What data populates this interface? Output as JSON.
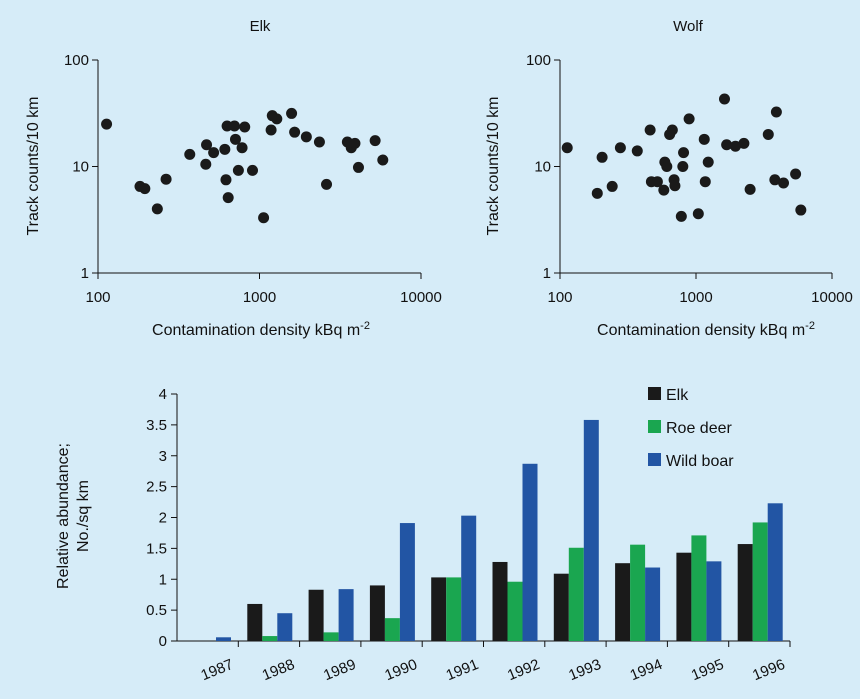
{
  "background_color": "#d6ecf8",
  "chart_data": [
    {
      "type": "scatter",
      "title": "Elk",
      "xlabel": "Contamination density kBq m",
      "xlabel_superscript": "-2",
      "ylabel": "Track counts/10 km",
      "xscale": "log",
      "yscale": "log",
      "xlim": [
        100,
        10000
      ],
      "ylim": [
        1,
        100
      ],
      "xticks": [
        "100",
        "1000",
        "10000"
      ],
      "yticks": [
        "1",
        "10",
        "100"
      ],
      "marker_color": "#1a1a1a",
      "points": [
        [
          113,
          25
        ],
        [
          182,
          6.5
        ],
        [
          195,
          6.2
        ],
        [
          233,
          4.0
        ],
        [
          264,
          7.6
        ],
        [
          370,
          13
        ],
        [
          465,
          10.5
        ],
        [
          470,
          16
        ],
        [
          520,
          13.5
        ],
        [
          610,
          14.5
        ],
        [
          620,
          7.5
        ],
        [
          630,
          24
        ],
        [
          640,
          5.1
        ],
        [
          700,
          24
        ],
        [
          710,
          18
        ],
        [
          740,
          9.2
        ],
        [
          780,
          15
        ],
        [
          810,
          23.5
        ],
        [
          905,
          9.2
        ],
        [
          1060,
          3.3
        ],
        [
          1180,
          22
        ],
        [
          1200,
          30
        ],
        [
          1280,
          28
        ],
        [
          1580,
          31.5
        ],
        [
          1650,
          21
        ],
        [
          1950,
          19
        ],
        [
          2350,
          17
        ],
        [
          2600,
          6.8
        ],
        [
          3500,
          17
        ],
        [
          3700,
          15
        ],
        [
          3900,
          16.5
        ],
        [
          4100,
          9.8
        ],
        [
          5200,
          17.5
        ],
        [
          5800,
          11.5
        ]
      ]
    },
    {
      "type": "scatter",
      "title": "Wolf",
      "xlabel": "Contamination density kBq m",
      "xlabel_superscript": "-2",
      "ylabel": "Track counts/10 km",
      "xscale": "log",
      "yscale": "log",
      "xlim": [
        100,
        10000
      ],
      "ylim": [
        1,
        100
      ],
      "xticks": [
        "100",
        "1000",
        "10000"
      ],
      "yticks": [
        "1",
        "10",
        "100"
      ],
      "marker_color": "#1a1a1a",
      "points": [
        [
          113,
          15
        ],
        [
          188,
          5.6
        ],
        [
          204,
          12.2
        ],
        [
          242,
          6.5
        ],
        [
          278,
          15
        ],
        [
          370,
          14
        ],
        [
          460,
          22
        ],
        [
          470,
          7.2
        ],
        [
          520,
          7.2
        ],
        [
          580,
          6.0
        ],
        [
          590,
          11
        ],
        [
          610,
          10
        ],
        [
          640,
          20
        ],
        [
          670,
          22
        ],
        [
          690,
          7.5
        ],
        [
          700,
          6.6
        ],
        [
          780,
          3.4
        ],
        [
          800,
          10
        ],
        [
          810,
          13.5
        ],
        [
          890,
          28
        ],
        [
          1040,
          3.6
        ],
        [
          1150,
          18
        ],
        [
          1170,
          7.2
        ],
        [
          1230,
          11
        ],
        [
          1620,
          43
        ],
        [
          1680,
          16
        ],
        [
          1950,
          15.5
        ],
        [
          2250,
          16.5
        ],
        [
          2500,
          6.1
        ],
        [
          3400,
          20
        ],
        [
          3800,
          7.5
        ],
        [
          3900,
          32.5
        ],
        [
          4400,
          7
        ],
        [
          5400,
          8.5
        ],
        [
          5900,
          3.9
        ]
      ]
    },
    {
      "type": "bar",
      "ylabel_line1": "Relative abundance;",
      "ylabel_line2": "No./sq km",
      "categories": [
        "1987",
        "1988",
        "1989",
        "1990",
        "1991",
        "1992",
        "1993",
        "1994",
        "1995",
        "1996"
      ],
      "ylim": [
        0,
        4
      ],
      "yticks": [
        "0",
        "0.5",
        "1",
        "1.5",
        "2",
        "2.5",
        "3",
        "3.5",
        "4"
      ],
      "legend_position": "top-right",
      "series": [
        {
          "name": "Elk",
          "color": "#1a1a1a",
          "values": [
            0,
            0.6,
            0.83,
            0.9,
            1.03,
            1.28,
            1.09,
            1.26,
            1.43,
            1.57
          ]
        },
        {
          "name": "Roe deer",
          "color": "#1aa650",
          "values": [
            0,
            0.08,
            0.14,
            0.37,
            1.03,
            0.96,
            1.51,
            1.56,
            1.71,
            1.92
          ]
        },
        {
          "name": "Wild boar",
          "color": "#2255a4",
          "values": [
            0.06,
            0.45,
            0.84,
            1.91,
            2.03,
            2.87,
            3.58,
            1.19,
            1.29,
            2.23
          ]
        }
      ]
    }
  ]
}
